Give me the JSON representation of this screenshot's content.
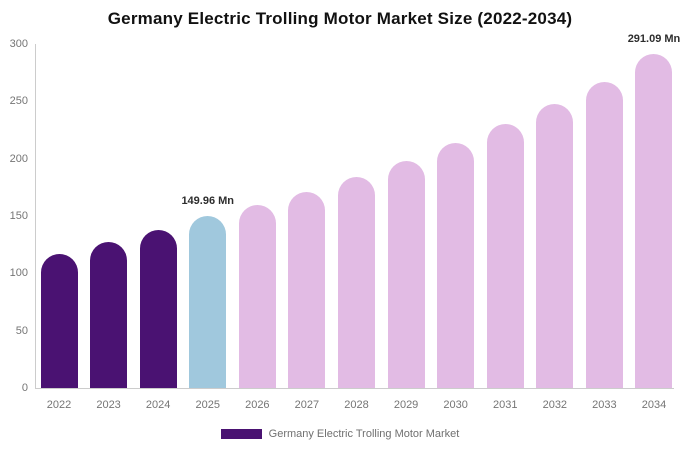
{
  "chart_data": {
    "type": "bar",
    "title": "Germany Electric Trolling Motor Market Size (2022-2034)",
    "categories": [
      "2022",
      "2023",
      "2024",
      "2025",
      "2026",
      "2027",
      "2028",
      "2029",
      "2030",
      "2031",
      "2032",
      "2033",
      "2034"
    ],
    "values": [
      117,
      127,
      138,
      149.96,
      160,
      171,
      184,
      198,
      214,
      230,
      248,
      267,
      291.09
    ],
    "unit": "Mn",
    "xlabel": "",
    "ylabel": "",
    "ylim": [
      0,
      300
    ],
    "yticks": [
      0,
      50,
      100,
      150,
      200,
      250,
      300
    ],
    "grid": false,
    "bar_roles": [
      "historical",
      "historical",
      "historical",
      "base_year",
      "forecast",
      "forecast",
      "forecast",
      "forecast",
      "forecast",
      "forecast",
      "forecast",
      "forecast",
      "forecast"
    ],
    "colors": {
      "historical": "#4a1272",
      "base_year": "#a0c8dd",
      "forecast": "#e2bbe4"
    },
    "annotations": [
      {
        "category": "2025",
        "text": "149.96 Mn"
      },
      {
        "category": "2034",
        "text": "291.09 Mn"
      }
    ],
    "legend": {
      "label": "Germany Electric Trolling Motor Market",
      "position": "bottom",
      "swatch_color": "#4a1272"
    }
  }
}
